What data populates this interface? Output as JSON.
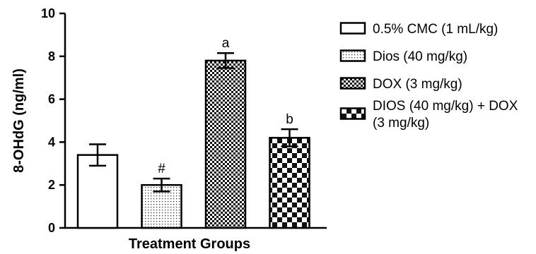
{
  "chart_data": {
    "type": "bar",
    "title": "",
    "xlabel": "Treatment Groups",
    "ylabel": "8-OHdG (ng/ml)",
    "ylim": [
      0,
      10
    ],
    "yticks": [
      "0",
      "2",
      "4",
      "6",
      "8",
      "10"
    ],
    "legend_position": "right",
    "series": [
      {
        "name": "0.5% CMC (1 mL/kg)",
        "pattern": "white",
        "value": 3.4,
        "error": 0.5,
        "annotation": ""
      },
      {
        "name": "Dios (40 mg/kg)",
        "pattern": "fine-dots",
        "value": 2.0,
        "error": 0.3,
        "annotation": "#"
      },
      {
        "name": "DOX (3 mg/kg)",
        "pattern": "fine-checker",
        "value": 7.8,
        "error": 0.35,
        "annotation": "a"
      },
      {
        "name": "DIOS (40 mg/kg) + DOX (3 mg/kg)",
        "pattern": "coarse-checker",
        "value": 4.2,
        "error": 0.4,
        "annotation": "b"
      }
    ],
    "legend_lines": [
      [
        "0.5% CMC (1 mL/kg)"
      ],
      [
        "Dios (40 mg/kg)"
      ],
      [
        "DOX (3 mg/kg)"
      ],
      [
        "DIOS (40 mg/kg) + DOX",
        "(3 mg/kg)"
      ]
    ]
  }
}
